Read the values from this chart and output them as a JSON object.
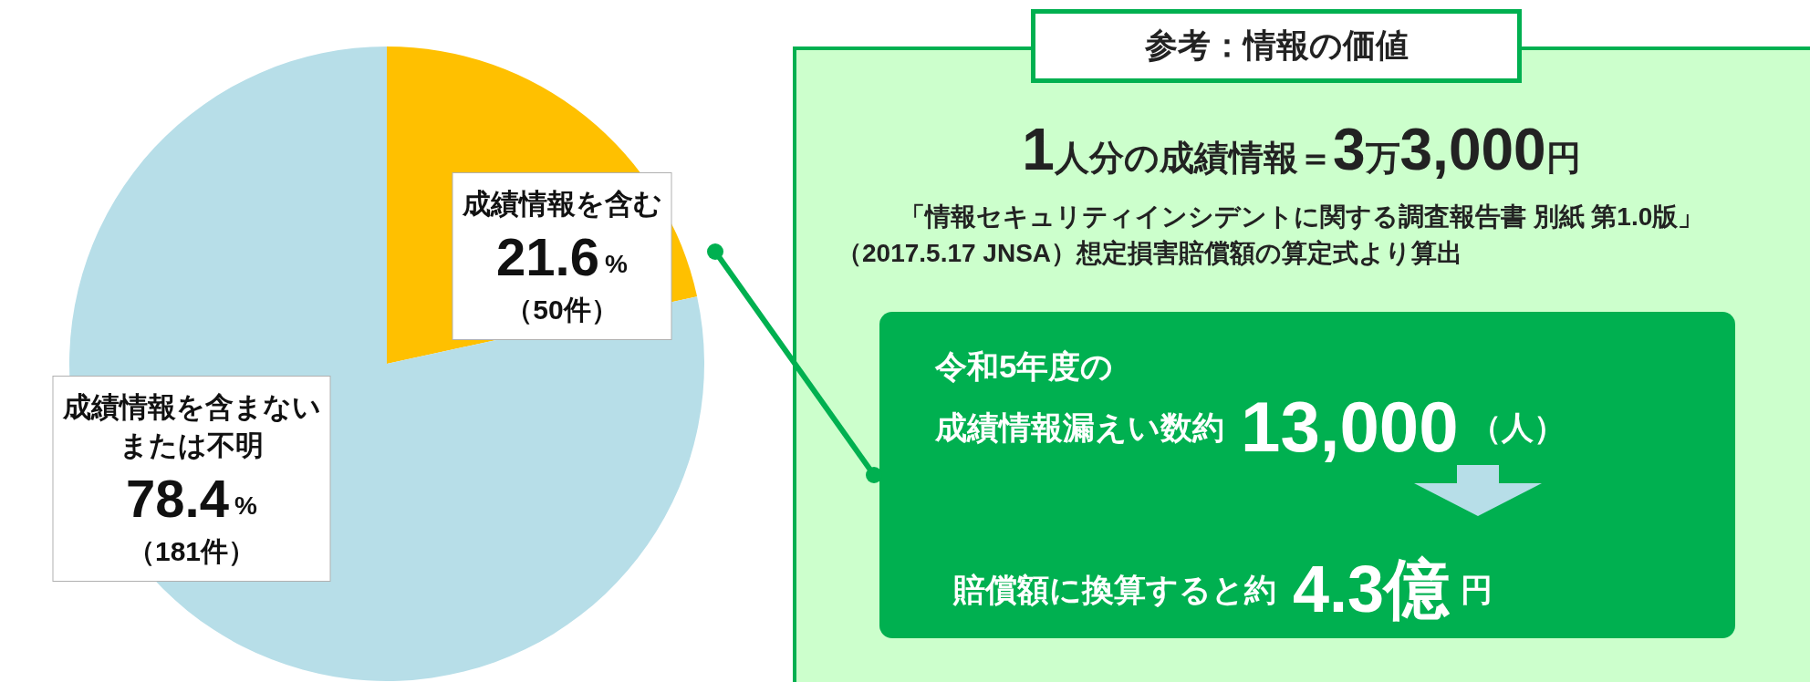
{
  "chart_data": [
    {
      "type": "pie",
      "categories": [
        "成績情報を含む",
        "成績情報を含まないまたは不明"
      ],
      "values": [
        21.6,
        78.4
      ],
      "colors": [
        "#ffc000",
        "#b7dee8"
      ],
      "value_labels": [
        "21.6%（50件）",
        "78.4%（181件）"
      ]
    },
    {
      "type": "other",
      "title": "参考：情報の価値",
      "annotations": [
        "1人分の成績情報＝3万3,000円",
        "「情報セキュリティインシデントに関する調査報告書 別紙 第1.0版」",
        "（2017.5.17 JNSA）想定損害賠償額の算定式より算出",
        "令和5年度の",
        "成績情報漏えい数約13,000（人）",
        "賠償額に換算すると約4.3億円"
      ]
    }
  ]
}
